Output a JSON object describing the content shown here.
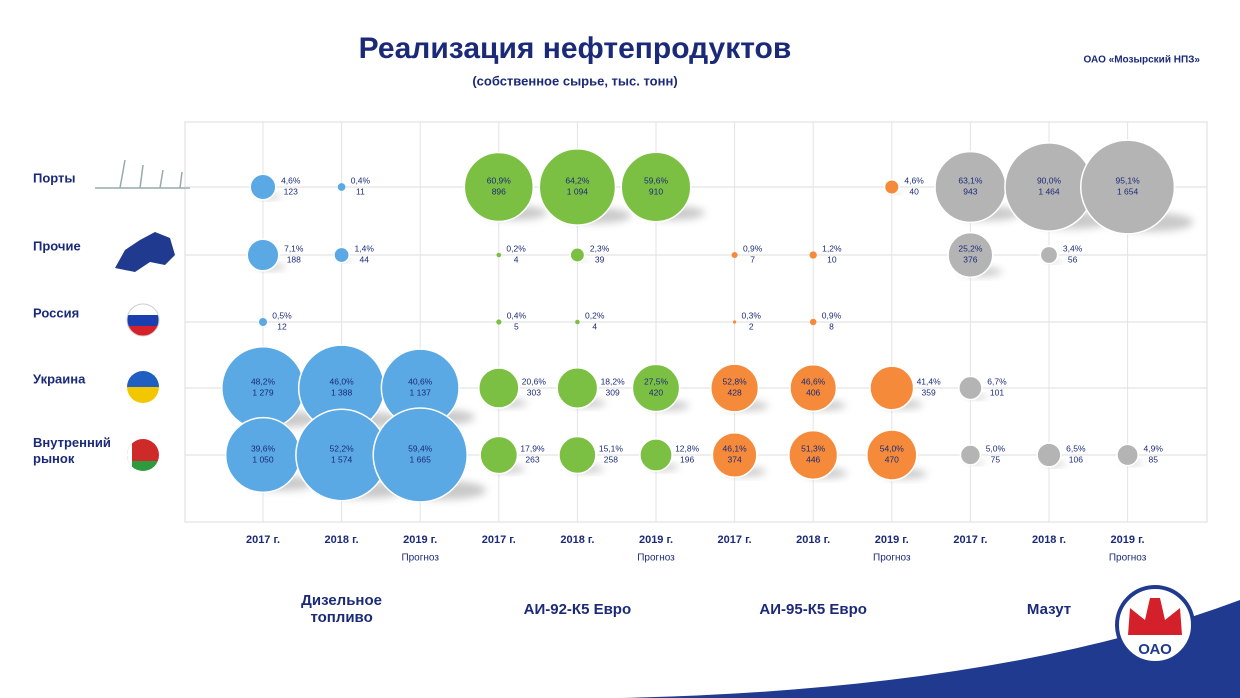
{
  "chart_data": {
    "type": "bubble",
    "title": "Реализация нефтепродуктов",
    "subtitle": "(собственное сырье, тыс. тонн)",
    "company": "ОАО «Мозырский НПЗ»",
    "logo_text": "ОАО",
    "rows": [
      "Порты",
      "Прочие",
      "Россия",
      "Украина",
      "Внутренний рынок"
    ],
    "products": [
      {
        "name": "Дизельное топливо",
        "color": "#5aa9e4",
        "series": [
          {
            "year": "2017 г.",
            "values": [
              123,
              188,
              12,
              1279,
              1050
            ],
            "value_labels": [
              "123",
              "188",
              "12",
              "1 279",
              "1 050"
            ],
            "shares": [
              4.6,
              7.1,
              0.5,
              48.2,
              39.6
            ],
            "share_labels": [
              "4,6%",
              "7,1%",
              "0,5%",
              "48,2%",
              "39,6%"
            ]
          },
          {
            "year": "2018 г.",
            "values": [
              11,
              44,
              null,
              1388,
              1574
            ],
            "value_labels": [
              "11",
              "44",
              null,
              "1 388",
              "1 574"
            ],
            "shares": [
              0.4,
              1.4,
              null,
              46.0,
              52.2
            ],
            "share_labels": [
              "0,4%",
              "1,4%",
              null,
              "46,0%",
              "52,2%"
            ]
          },
          {
            "year": "2019 г.",
            "note": "Прогноз",
            "values": [
              null,
              null,
              null,
              1137,
              1665
            ],
            "value_labels": [
              null,
              null,
              null,
              "1 137",
              "1 665"
            ],
            "shares": [
              null,
              null,
              null,
              40.6,
              59.4
            ],
            "share_labels": [
              null,
              null,
              null,
              "40,6%",
              "59,4%"
            ]
          }
        ]
      },
      {
        "name": "АИ-92-К5 Евро",
        "color": "#7cc043",
        "series": [
          {
            "year": "2017 г.",
            "values": [
              896,
              4,
              5,
              303,
              263
            ],
            "value_labels": [
              "896",
              "4",
              "5",
              "303",
              "263"
            ],
            "shares": [
              60.9,
              0.2,
              0.4,
              20.6,
              17.9
            ],
            "share_labels": [
              "60,9%",
              "0,2%",
              "0,4%",
              "20,6%",
              "17,9%"
            ]
          },
          {
            "year": "2018 г.",
            "values": [
              1094,
              39,
              4,
              309,
              258
            ],
            "value_labels": [
              "1 094",
              "39",
              "4",
              "309",
              "258"
            ],
            "shares": [
              64.2,
              2.3,
              0.2,
              18.2,
              15.1
            ],
            "share_labels": [
              "64,2%",
              "2,3%",
              "0,2%",
              "18,2%",
              "15,1%"
            ]
          },
          {
            "year": "2019 г.",
            "note": "Прогноз",
            "values": [
              910,
              null,
              null,
              420,
              196
            ],
            "value_labels": [
              "910",
              null,
              null,
              "420",
              "196"
            ],
            "shares": [
              59.6,
              null,
              null,
              27.5,
              12.8
            ],
            "share_labels": [
              "59,6%",
              null,
              null,
              "27,5%",
              "12,8%"
            ]
          }
        ]
      },
      {
        "name": "АИ-95-К5 Евро",
        "color": "#f58a3a",
        "series": [
          {
            "year": "2017 г.",
            "values": [
              null,
              7,
              2,
              428,
              374
            ],
            "value_labels": [
              null,
              "7",
              "2",
              "428",
              "374"
            ],
            "shares": [
              null,
              0.9,
              0.3,
              52.8,
              46.1
            ],
            "share_labels": [
              null,
              "0,9%",
              "0,3%",
              "52,8%",
              "46,1%"
            ]
          },
          {
            "year": "2018 г.",
            "values": [
              null,
              10,
              8,
              406,
              446
            ],
            "value_labels": [
              null,
              "10",
              "8",
              "406",
              "446"
            ],
            "shares": [
              null,
              1.2,
              0.9,
              46.6,
              51.3
            ],
            "share_labels": [
              null,
              "1,2%",
              "0,9%",
              "46,6%",
              "51,3%"
            ]
          },
          {
            "year": "2019 г.",
            "note": "Прогноз",
            "values": [
              40,
              null,
              null,
              359,
              470
            ],
            "value_labels": [
              "40",
              null,
              null,
              "359",
              "470"
            ],
            "shares": [
              4.6,
              null,
              null,
              41.4,
              54.0
            ],
            "share_labels": [
              "4,6%",
              null,
              null,
              "41,4%",
              "54,0%"
            ]
          }
        ]
      },
      {
        "name": "Мазут",
        "color": "#b4b4b4",
        "series": [
          {
            "year": "2017 г.",
            "values": [
              943,
              376,
              null,
              101,
              75
            ],
            "value_labels": [
              "943",
              "376",
              null,
              "101",
              "75"
            ],
            "shares": [
              63.1,
              25.2,
              null,
              6.7,
              5.0
            ],
            "share_labels": [
              "63,1%",
              "25,2%",
              null,
              "6,7%",
              "5,0%"
            ]
          },
          {
            "year": "2018 г.",
            "values": [
              1464,
              56,
              null,
              null,
              106
            ],
            "value_labels": [
              "1 464",
              "56",
              null,
              null,
              "106"
            ],
            "shares": [
              90.0,
              3.4,
              null,
              null,
              6.5
            ],
            "share_labels": [
              "90,0%",
              "3,4%",
              null,
              null,
              "6,5%"
            ]
          },
          {
            "year": "2019 г.",
            "note": "Прогноз",
            "values": [
              1654,
              null,
              null,
              null,
              85
            ],
            "value_labels": [
              "1 654",
              null,
              null,
              null,
              "85"
            ],
            "shares": [
              95.1,
              null,
              null,
              null,
              4.9
            ],
            "share_labels": [
              "95,1%",
              null,
              null,
              null,
              "4,9%"
            ]
          }
        ]
      }
    ]
  }
}
